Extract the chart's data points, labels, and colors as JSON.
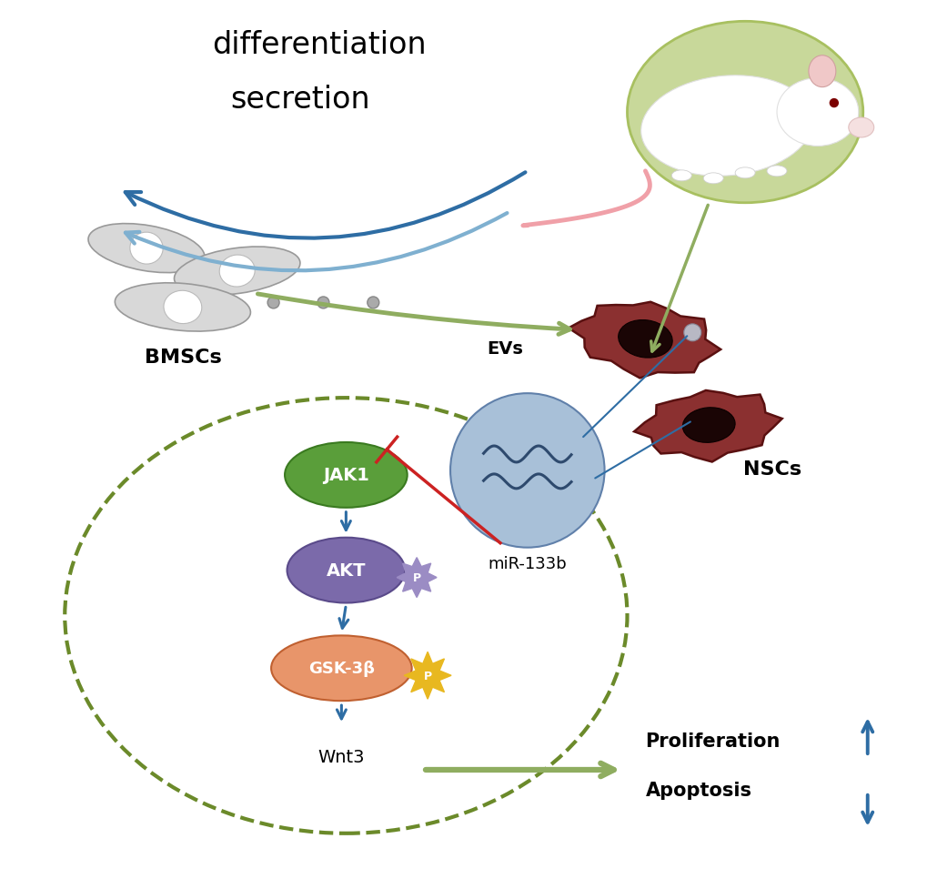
{
  "bg_color": "#ffffff",
  "differentiation_text": "differentiation",
  "secretion_text": "secretion",
  "bmscs_text": "BMSCs",
  "nscs_text": "NSCs",
  "evs_text": "EVs",
  "mir_text": "miR-133b",
  "jak1_text": "JAK1",
  "akt_text": "AKT",
  "gsk_text": "GSK-3β",
  "wnt3_text": "Wnt3",
  "prolif_text": "Proliferation",
  "apop_text": "Apoptosis",
  "dark_blue_arrow": "#2e6da4",
  "light_blue_arrow": "#7fb0d0",
  "olive_green_arrow": "#8fad60",
  "red_inhibit": "#cc2222",
  "blue_signal": "#2e6da4",
  "jak1_color": "#5a9e3a",
  "akt_color": "#7b6aaa",
  "gsk_color": "#e8956a",
  "p_sunburst_akt": "#9b8cc4",
  "p_sunburst_gsk": "#e8b820",
  "mir_circle_color": "#a8c0d8",
  "mir_line_color": "#2e4a6e",
  "mouse_oval_color": "#c8d89a",
  "dashed_circle_color": "#6b8a2a",
  "up_arrow_color": "#2e6da4",
  "down_arrow_color": "#2e6da4"
}
